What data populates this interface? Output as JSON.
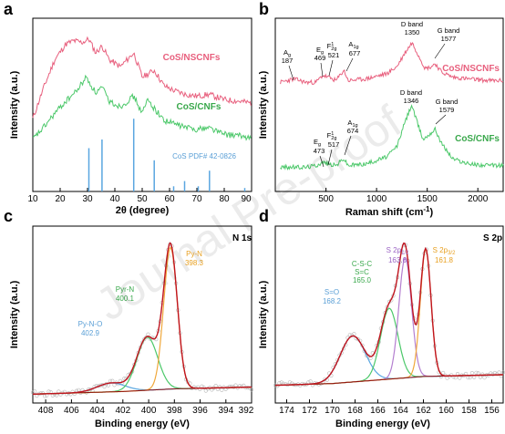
{
  "figure": {
    "watermark": "Journal Pre-proof"
  },
  "colors": {
    "pink": "#e8607e",
    "green": "#4cc86a",
    "blue": "#5aa6e0",
    "orange": "#f0a83c",
    "purple": "#b47fd0",
    "red": "#c0141e",
    "label_blue": "#5a9fd6",
    "label_green": "#3aa84c",
    "label_orange": "#e8a020",
    "label_purple": "#9a62c4",
    "raw": "#b8b8b8"
  },
  "chart_data": [
    {
      "panel": "a",
      "type": "line",
      "xlabel": "2θ (degree)",
      "ylabel": "Intensity (a.u.)",
      "xlim": [
        10,
        90
      ],
      "xticks": [
        10,
        20,
        30,
        40,
        50,
        60,
        70,
        80,
        90
      ],
      "series": [
        {
          "name": "CoS/NSCNFs",
          "color": "#e8607e",
          "x": [
            10,
            14,
            18,
            22,
            25,
            28,
            30.5,
            33,
            35.3,
            38,
            42,
            46.9,
            50,
            54.4,
            58,
            62,
            66,
            70,
            74.5,
            80,
            86,
            90
          ],
          "y": [
            0.42,
            0.6,
            0.76,
            0.85,
            0.87,
            0.86,
            0.88,
            0.8,
            0.84,
            0.76,
            0.72,
            0.8,
            0.66,
            0.7,
            0.61,
            0.58,
            0.56,
            0.55,
            0.56,
            0.53,
            0.52,
            0.51
          ]
        },
        {
          "name": "CoS/CNFs",
          "color": "#4cc86a",
          "x": [
            10,
            14,
            18,
            22,
            26,
            29.5,
            31,
            33,
            35.3,
            38,
            42,
            46.9,
            50,
            52,
            54.4,
            58,
            62,
            66,
            70,
            74.5,
            80,
            86,
            90
          ],
          "y": [
            0.3,
            0.37,
            0.45,
            0.52,
            0.58,
            0.66,
            0.62,
            0.57,
            0.6,
            0.52,
            0.49,
            0.55,
            0.45,
            0.53,
            0.48,
            0.41,
            0.39,
            0.37,
            0.36,
            0.37,
            0.33,
            0.32,
            0.31
          ]
        }
      ],
      "reference": {
        "name": "CoS PDF# 42-0826",
        "color": "#5aa6e0",
        "x": [
          30.5,
          35.3,
          46.9,
          54.4,
          61.5,
          65.5,
          70.5,
          74.6,
          87.5
        ],
        "y": [
          0.25,
          0.3,
          0.42,
          0.18,
          0.03,
          0.06,
          0.03,
          0.12,
          0.02
        ]
      }
    },
    {
      "panel": "b",
      "type": "line",
      "xlabel": "Raman shift (cm⁻¹)",
      "ylabel": "Intensity (a.u.)",
      "xlim": [
        0,
        2250
      ],
      "xticks": [
        0,
        500,
        1000,
        1500,
        2000
      ],
      "series": [
        {
          "name": "CoS/NSCNFs",
          "color": "#e8607e",
          "x": [
            50,
            187,
            300,
            400,
            469,
            521,
            600,
            677,
            720,
            900,
            1100,
            1200,
            1280,
            1350,
            1420,
            1480,
            1540,
            1577,
            1640,
            1750,
            1900,
            2100,
            2250
          ],
          "y": [
            0.63,
            0.65,
            0.63,
            0.63,
            0.67,
            0.66,
            0.64,
            0.7,
            0.64,
            0.65,
            0.68,
            0.72,
            0.8,
            0.86,
            0.78,
            0.71,
            0.72,
            0.74,
            0.69,
            0.66,
            0.65,
            0.64,
            0.64
          ]
        },
        {
          "name": "CoS/CNFs",
          "color": "#4cc86a",
          "x": [
            50,
            300,
            400,
            473,
            517,
            600,
            674,
            720,
            900,
            1100,
            1200,
            1280,
            1346,
            1400,
            1460,
            1520,
            1579,
            1640,
            1750,
            1900,
            2100,
            2250
          ],
          "y": [
            0.14,
            0.14,
            0.15,
            0.17,
            0.16,
            0.15,
            0.19,
            0.15,
            0.16,
            0.2,
            0.26,
            0.4,
            0.5,
            0.4,
            0.3,
            0.33,
            0.36,
            0.28,
            0.19,
            0.16,
            0.15,
            0.15
          ]
        }
      ],
      "annotations": [
        {
          "label": "A",
          "sub": "g",
          "value": "187",
          "x": 187,
          "level": "upper"
        },
        {
          "label": "E",
          "sub": "g",
          "value": "469",
          "x": 469,
          "level": "upper"
        },
        {
          "label": "F",
          "sup": "1",
          "sub": "2g",
          "value": "521",
          "x": 521,
          "level": "upper"
        },
        {
          "label": "A",
          "sub": "1g",
          "value": "677",
          "x": 677,
          "level": "upper"
        },
        {
          "label": "D band",
          "value": "1350",
          "x": 1350,
          "level": "upper"
        },
        {
          "label": "G band",
          "value": "1577",
          "x": 1577,
          "level": "upper"
        },
        {
          "label": "E",
          "sub": "g",
          "value": "473",
          "x": 473,
          "level": "lower"
        },
        {
          "label": "F",
          "sup": "1",
          "sub": "2g",
          "value": "517",
          "x": 517,
          "level": "lower"
        },
        {
          "label": "A",
          "sub": "1g",
          "value": "674",
          "x": 674,
          "level": "lower"
        },
        {
          "label": "D band",
          "value": "1346",
          "x": 1346,
          "level": "lower"
        },
        {
          "label": "G band",
          "value": "1579",
          "x": 1579,
          "level": "lower"
        }
      ]
    },
    {
      "panel": "c",
      "type": "line",
      "title": "N 1s",
      "xlabel": "Binding energy (eV)",
      "ylabel": "Intensity (a.u.)",
      "xlim": [
        409,
        392
      ],
      "xticks": [
        408,
        406,
        404,
        402,
        400,
        398,
        396,
        394,
        392
      ],
      "baseline": [
        [
          409,
          0.05
        ],
        [
          402,
          0.065
        ],
        [
          398,
          0.08
        ],
        [
          392,
          0.09
        ]
      ],
      "components": [
        {
          "name": "Py-N-O",
          "value": "402.9",
          "center": 402.9,
          "height": 0.05,
          "fwhm": 2.6,
          "color": "#5aa6e0"
        },
        {
          "name": "Pyr-N",
          "value": "400.1",
          "center": 400.1,
          "height": 0.3,
          "fwhm": 1.9,
          "color": "#4cc86a"
        },
        {
          "name": "Py-N",
          "value": "398.3",
          "center": 398.3,
          "height": 0.8,
          "fwhm": 1.25,
          "color": "#f0a83c"
        }
      ]
    },
    {
      "panel": "d",
      "type": "line",
      "title": "S 2p",
      "xlabel": "Binding energy (eV)",
      "ylabel": "Intensity (a.u.)",
      "xlim": [
        175,
        155
      ],
      "xticks": [
        174,
        172,
        170,
        168,
        166,
        164,
        162,
        160,
        158,
        156
      ],
      "baseline": [
        [
          175,
          0.1
        ],
        [
          170,
          0.11
        ],
        [
          166,
          0.13
        ],
        [
          162,
          0.15
        ],
        [
          155,
          0.16
        ]
      ],
      "components": [
        {
          "name": "S=O",
          "value": "168.2",
          "center": 168.2,
          "height": 0.26,
          "fwhm": 2.6,
          "color": "#5aa6e0"
        },
        {
          "name": "C-S-C / S=C",
          "value": "165.0",
          "center": 165.0,
          "height": 0.4,
          "fwhm": 1.8,
          "color": "#4cc86a"
        },
        {
          "name": "S 2p1/2",
          "value": "163.6",
          "center": 163.6,
          "height": 0.68,
          "fwhm": 1.3,
          "color": "#b47fd0"
        },
        {
          "name": "S 2p3/2",
          "value": "161.8",
          "center": 161.8,
          "height": 0.72,
          "fwhm": 1.1,
          "color": "#f0a83c"
        }
      ]
    }
  ],
  "labels": {
    "a": {
      "letter": "a",
      "ylabel": "Intensity (a.u.)",
      "xlabel": "2θ (degree)",
      "ticks": [
        "10",
        "20",
        "30",
        "40",
        "50",
        "60",
        "70",
        "80",
        "90"
      ],
      "series1": "CoS/NSCNFs",
      "series2": "CoS/CNFs",
      "ref": "CoS PDF# 42-0826"
    },
    "b": {
      "letter": "b",
      "ylabel": "Intensity (a.u.)",
      "xlabel_main": "Raman shift (cm",
      "xlabel_sup": "-1",
      "xlabel_end": ")",
      "ticks": [
        "500",
        "1000",
        "1500",
        "2000"
      ],
      "series1": "CoS/NSCNFs",
      "series2": "CoS/CNFs",
      "up_ag_sym": "A",
      "up_ag_sub": "g",
      "up_ag_val": "187",
      "up_eg_sym": "E",
      "up_eg_sub": "g",
      "up_eg_val": "469",
      "up_f_sym": "F",
      "up_f_sup": "1",
      "up_f_sub": "2g",
      "up_f_val": "521",
      "up_a1g_sym": "A",
      "up_a1g_sub": "1g",
      "up_a1g_val": "677",
      "up_d": "D band",
      "up_d_val": "1350",
      "up_g": "G band",
      "up_g_val": "1577",
      "lo_eg_sym": "E",
      "lo_eg_sub": "g",
      "lo_eg_val": "473",
      "lo_f_sym": "F",
      "lo_f_sup": "1",
      "lo_f_sub": "2g",
      "lo_f_val": "517",
      "lo_a1g_sym": "A",
      "lo_a1g_sub": "1g",
      "lo_a1g_val": "674",
      "lo_d": "D band",
      "lo_d_val": "1346",
      "lo_g": "G band",
      "lo_g_val": "1579"
    },
    "c": {
      "letter": "c",
      "title": "N 1s",
      "ylabel": "Intensity (a.u.)",
      "xlabel": "Binding energy (eV)",
      "ticks": [
        "408",
        "406",
        "404",
        "402",
        "400",
        "398",
        "396",
        "394",
        "392"
      ],
      "pyno": "Py-N-O",
      "pyno_val": "402.9",
      "pyrn": "Pyr-N",
      "pyrn_val": "400.1",
      "pyn": "Py-N",
      "pyn_val": "398.3"
    },
    "d": {
      "letter": "d",
      "title": "S 2p",
      "ylabel": "Intensity (a.u.)",
      "xlabel": "Binding energy (eV)",
      "ticks": [
        "174",
        "172",
        "170",
        "168",
        "166",
        "164",
        "162",
        "160",
        "158",
        "156"
      ],
      "so": "S=O",
      "so_val": "168.2",
      "csc": "C-S-C",
      "sc": "S=C",
      "csc_val": "165.0",
      "s12": "S 2p",
      "s12_sub": "1/2",
      "s12_val": "163.6",
      "s32": "S 2p",
      "s32_sub": "3/2",
      "s32_val": "161.8"
    }
  }
}
